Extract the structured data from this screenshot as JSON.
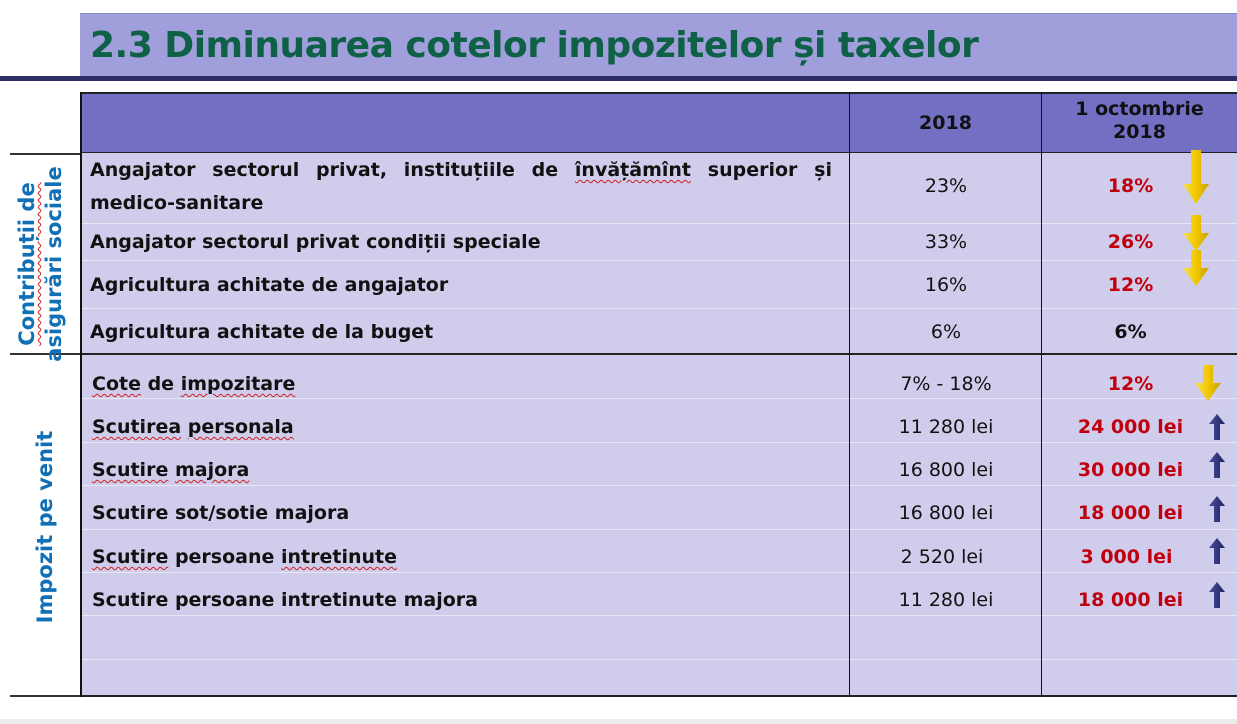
{
  "title": "2.3 Diminuarea cotelor impozitelor și taxelor",
  "header": {
    "col_2018": "2018",
    "col_new_line1": "1 octombrie",
    "col_new_line2": "2018"
  },
  "sections": {
    "contributii_line1": "Contribuții de",
    "contributii_line2": "asigurări sociale",
    "impozit": "Impozit pe venit"
  },
  "contributii_rows": [
    {
      "label_part1": "Angajator sectorul privat, instituțiile de ",
      "label_squig": "învățămînt",
      "label_part2": " superior și medico-sanitare",
      "v2018": "23%",
      "vnew": "18%",
      "trend": "down"
    },
    {
      "label": "Angajator sectorul privat condiții speciale",
      "v2018": "33%",
      "vnew": "26%",
      "trend": "down"
    },
    {
      "label": "Agricultura achitate de angajator",
      "v2018": "16%",
      "vnew": "12%",
      "trend": "down"
    },
    {
      "label": "Agricultura achitate de la buget",
      "v2018": "6%",
      "vnew": "6%",
      "trend": "none"
    }
  ],
  "impozit_rows": [
    {
      "label": "Cote de impozitare",
      "v2018": "7% - 18%",
      "vnew": "12%",
      "trend": "down"
    },
    {
      "label": "Scutirea personala",
      "v2018": "11 280 lei",
      "vnew": "24 000 lei",
      "trend": "up"
    },
    {
      "label": "Scutire majora",
      "v2018": "16 800 lei",
      "vnew": "30 000 lei",
      "trend": "up"
    },
    {
      "label": "Scutire sot/sotie majora",
      "v2018": "16 800 lei",
      "vnew": "18 000 lei",
      "trend": "up"
    },
    {
      "label": "Scutire persoane intretinute",
      "v2018": "2 520 lei",
      "vnew": "3 000 lei",
      "trend": "up"
    },
    {
      "label": "Scutire persoane intretinute majora",
      "v2018": "11 280 lei",
      "vnew": "18 000 lei",
      "trend": "up"
    }
  ],
  "colors": {
    "title_bg": "#a09edb",
    "title_text": "#0e6147",
    "header_bg": "#7370c4",
    "row_bg": "#cfcdeb",
    "decrease_value": "#c0000f",
    "side_label": "#1170b5",
    "arrow_down": "#f2d21a",
    "arrow_up": "#262a72"
  }
}
